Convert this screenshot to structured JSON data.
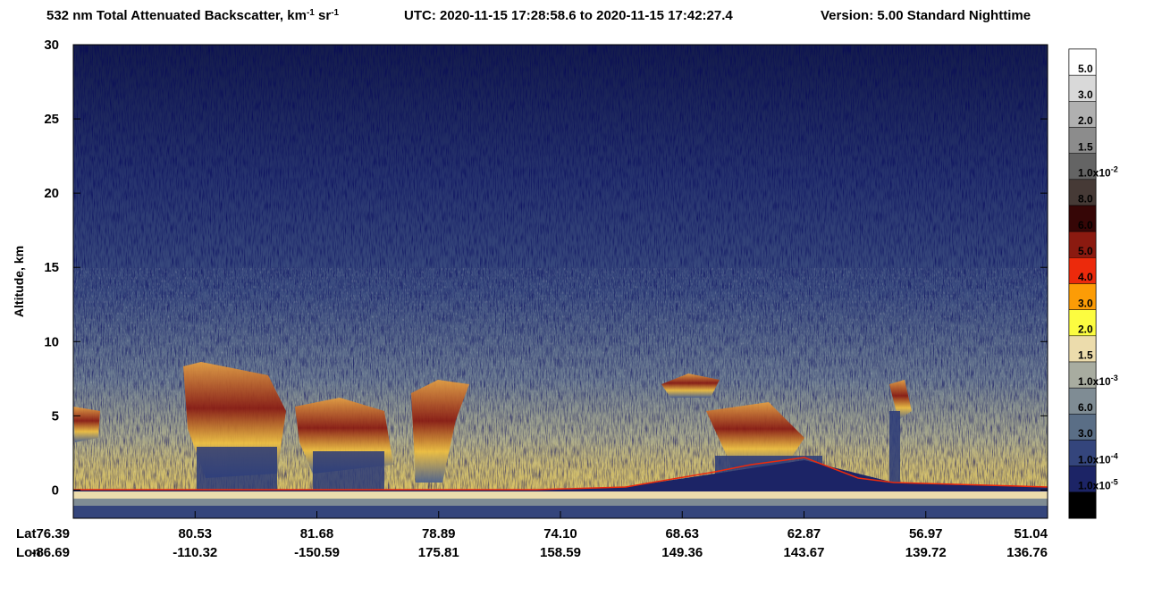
{
  "chart_data": {
    "type": "curtain",
    "title_parts": [
      {
        "text": "532 nm Total Attenuated Backscatter, km"
      },
      {
        "text": "-1",
        "sup": true
      },
      {
        "text": " sr"
      },
      {
        "text": "-1",
        "sup": true
      }
    ],
    "time_range": "UTC:  2020-11-15 17:28:58.6  to  2020-11-15 17:42:27.4",
    "version": "Version: 5.00  Standard  Nighttime",
    "ylabel": "Altitude, km",
    "ylim": [
      -1.9,
      30
    ],
    "yticks": [
      0,
      5,
      10,
      15,
      20,
      25,
      30
    ],
    "x_row_labels": [
      "Lat",
      "Lon"
    ],
    "lat": [
      "76.39",
      "80.53",
      "81.68",
      "78.89",
      "74.10",
      "68.63",
      "62.87",
      "56.97",
      "51.04"
    ],
    "lon": [
      "-86.69",
      "-110.32",
      "-150.59",
      "175.81",
      "158.59",
      "149.36",
      "143.67",
      "139.72",
      "136.76"
    ],
    "colorbar": {
      "colors": [
        "#ffffff",
        "#d9d9d9",
        "#b0b0b0",
        "#8c8c8c",
        "#646464",
        "#463a36",
        "#360606",
        "#8b1a10",
        "#ec2a0c",
        "#fc9c06",
        "#fcfc40",
        "#ecdcac",
        "#a8aca0",
        "#7f8c94",
        "#5a6e86",
        "#34457c",
        "#1c2466",
        "#000000"
      ],
      "labels": [
        {
          "text": "5.0"
        },
        {
          "text": "3.0"
        },
        {
          "text": "2.0"
        },
        {
          "text": "1.5"
        },
        {
          "text": "1.0x10",
          "exp": "-2"
        },
        {
          "text": "8.0"
        },
        {
          "text": "6.0"
        },
        {
          "text": "5.0"
        },
        {
          "text": "4.0"
        },
        {
          "text": "3.0"
        },
        {
          "text": "2.0"
        },
        {
          "text": "1.5"
        },
        {
          "text": "1.0x10",
          "exp": "-3"
        },
        {
          "text": "6.0"
        },
        {
          "text": "3.0"
        },
        {
          "text": "1.0x10",
          "exp": "-4"
        },
        {
          "text": "1.0x10",
          "exp": "-5"
        }
      ]
    }
  }
}
